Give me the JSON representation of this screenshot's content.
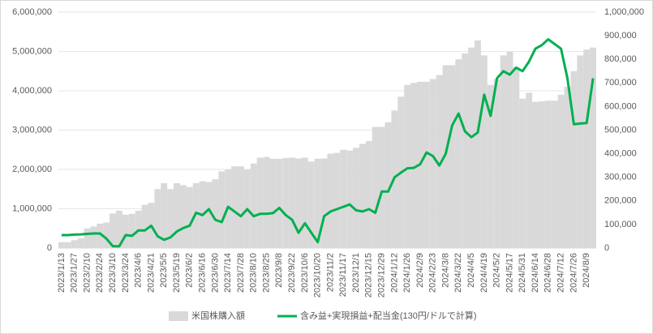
{
  "chart_data": {
    "type": "bar-line",
    "categories": [
      "2023/1/13",
      null,
      "2023/1/27",
      null,
      "2023/2/10",
      null,
      "2023/2/24",
      null,
      "2023/3/10",
      null,
      "2023/3/24",
      null,
      "2023/4/6",
      null,
      "2023/4/21",
      null,
      "2023/5/5",
      null,
      "2023/5/19",
      null,
      "2023/6/2",
      null,
      "2023/6/16",
      null,
      "2023/6/30",
      null,
      "2023/7/14",
      null,
      "2023/7/28",
      null,
      "2023/8/10",
      null,
      "2023/8/25",
      null,
      "2023/9/8",
      null,
      "2023/9/22",
      null,
      "2023/10/6",
      null,
      "2023/10/20",
      null,
      "2023/11/2",
      null,
      "2023/11/17",
      null,
      "2023/12/1",
      null,
      "2023/12/15",
      null,
      "2023/12/29",
      null,
      "2024/1/12",
      null,
      "2024/1/26",
      null,
      "2024/2/9",
      null,
      "2024/2/23",
      null,
      "2024/3/8",
      null,
      "2024/3/22",
      null,
      "2024/4/5",
      null,
      "2024/4/19",
      null,
      "2024/5/2",
      null,
      "2024/5/17",
      null,
      "2024/5/31",
      null,
      "2024/6/14",
      null,
      "2024/6/28",
      null,
      "2024/7/12",
      null,
      "2024/7/26",
      null,
      "2024/8/9",
      null
    ],
    "series": [
      {
        "name": "米国株購入額",
        "color": "#d9d9d9",
        "kind": "bar",
        "values": [
          150000,
          150000,
          200000,
          250000,
          500000,
          550000,
          620000,
          650000,
          880000,
          950000,
          850000,
          870000,
          950000,
          1100000,
          1150000,
          1500000,
          1650000,
          1500000,
          1650000,
          1600000,
          1550000,
          1650000,
          1700000,
          1680000,
          1750000,
          1950000,
          2000000,
          2080000,
          2080000,
          2000000,
          2150000,
          2300000,
          2320000,
          2270000,
          2270000,
          2290000,
          2300000,
          2280000,
          2300000,
          2200000,
          2270000,
          2280000,
          2400000,
          2420000,
          2500000,
          2480000,
          2550000,
          2650000,
          2720000,
          3080000,
          3080000,
          3200000,
          3500000,
          3850000,
          4150000,
          4200000,
          4230000,
          4230000,
          4300000,
          4400000,
          4650000,
          4650000,
          4800000,
          4950000,
          5100000,
          5280000,
          4900000,
          4150000,
          4300000,
          4900000,
          5000000,
          4600000,
          3800000,
          3950000,
          3720000,
          3730000,
          3750000,
          3750000,
          3900000,
          4100000,
          4500000,
          4900000,
          5050000,
          5100000
        ]
      },
      {
        "name": "含み益+実現損益+配当金(130円/ドルで計算)",
        "color": "#00b050",
        "kind": "line",
        "axis": "y2",
        "values": [
          55000,
          55000,
          57000,
          58000,
          60000,
          62000,
          62000,
          40000,
          8000,
          8000,
          55000,
          52000,
          75000,
          75000,
          95000,
          50000,
          35000,
          45000,
          70000,
          85000,
          95000,
          150000,
          140000,
          165000,
          120000,
          110000,
          175000,
          155000,
          135000,
          165000,
          135000,
          145000,
          145000,
          148000,
          170000,
          140000,
          120000,
          65000,
          105000,
          65000,
          25000,
          135000,
          155000,
          165000,
          175000,
          185000,
          160000,
          155000,
          165000,
          150000,
          240000,
          240000,
          300000,
          320000,
          338000,
          340000,
          355000,
          405000,
          390000,
          350000,
          400000,
          520000,
          570000,
          495000,
          470000,
          490000,
          650000,
          560000,
          720000,
          750000,
          735000,
          765000,
          750000,
          790000,
          845000,
          860000,
          885000,
          865000,
          845000,
          720000,
          525000,
          528000,
          530000,
          720000
        ]
      }
    ],
    "ylim": [
      0,
      6000000
    ],
    "yticks": [
      0,
      {
        "value": 1000000,
        "label": "1,000,000"
      },
      {
        "value": 2000000,
        "label": "2,000,000"
      },
      {
        "value": 3000000,
        "label": "3,000,000"
      },
      {
        "value": 4000000,
        "label": "4,000,000"
      },
      {
        "value": 5000000,
        "label": "5,000,000"
      },
      {
        "value": 6000000,
        "label": "6,000,000"
      }
    ],
    "y2lim": [
      0,
      1000000
    ],
    "y2ticks": [
      0,
      {
        "value": 100000,
        "label": "100,000"
      },
      {
        "value": 200000,
        "label": "200,000"
      },
      {
        "value": 300000,
        "label": "300,000"
      },
      {
        "value": 400000,
        "label": "400,000"
      },
      {
        "value": 500000,
        "label": "500,000"
      },
      {
        "value": 600000,
        "label": "600,000"
      },
      {
        "value": 700000,
        "label": "700,000"
      },
      {
        "value": 800000,
        "label": "800,000"
      },
      {
        "value": 900000,
        "label": "900,000"
      },
      {
        "value": {
          "value": 1000000,
          "label": "1,000,000"
        }
      }
    ],
    "legend": "bottom"
  }
}
